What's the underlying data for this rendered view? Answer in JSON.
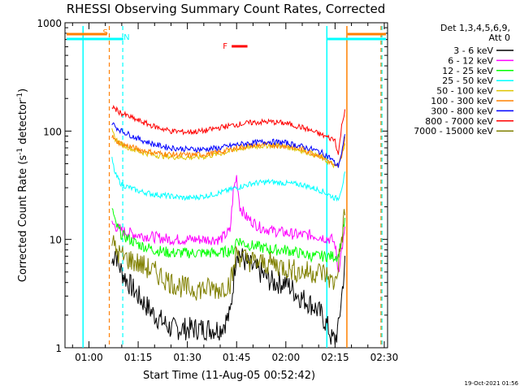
{
  "chart_data": {
    "type": "line",
    "title": "RHESSI Observing Summary Count Rates, Corrected",
    "xlabel": "Start Time (11-Aug-05 00:52:42)",
    "ylabel_main": "Corrected Count Rate (s",
    "ylabel_sup1": "-1",
    "ylabel_mid": " detector",
    "ylabel_sup2": "-1",
    "ylabel_end": ")",
    "y_scale": "log",
    "ylim": [
      1,
      1000
    ],
    "x_range_minutes": [
      "00:52:42",
      "02:31:00"
    ],
    "x_tick_labels": [
      "01:00",
      "01:15",
      "01:30",
      "01:45",
      "02:00",
      "02:15",
      "02:30"
    ],
    "x_tick_minutes": [
      60,
      75,
      90,
      105,
      120,
      135,
      150
    ],
    "y_tick_labels": [
      "1",
      "10",
      "100",
      "1000"
    ],
    "y_tick_values": [
      1,
      10,
      100,
      1000
    ],
    "legend_header": [
      "Det 1,3,4,5,6,9,",
      "Att 0"
    ],
    "legend_position": "right",
    "series": [
      {
        "name": "3 - 6 keV",
        "color": "#000000",
        "x": [
          67,
          68,
          69,
          70,
          72,
          75,
          80,
          85,
          90,
          95,
          100,
          103,
          104,
          105,
          108,
          112,
          116,
          120,
          124,
          128,
          131,
          133,
          134,
          135,
          136,
          137,
          138
        ],
        "y": [
          6,
          8,
          6,
          5,
          4,
          3,
          2,
          1.5,
          1.5,
          1.5,
          1.5,
          2,
          4,
          8,
          6,
          5,
          4,
          4,
          3,
          2.5,
          2,
          1.5,
          1.2,
          1.2,
          1.5,
          3,
          6
        ]
      },
      {
        "name": "6 - 12 keV",
        "color": "#ff00ff",
        "x": [
          67,
          70,
          75,
          80,
          85,
          90,
          95,
          100,
          103,
          104,
          105,
          106,
          108,
          112,
          116,
          120,
          124,
          128,
          131,
          134,
          135,
          136,
          137,
          138
        ],
        "y": [
          14,
          12,
          11,
          10.5,
          10,
          10,
          10,
          10,
          12,
          28,
          38,
          20,
          16,
          13,
          12,
          11.5,
          11,
          11,
          10.5,
          10,
          9,
          5,
          8,
          12
        ]
      },
      {
        "name": "12 - 25 keV",
        "color": "#00ff00",
        "x": [
          67,
          68,
          70,
          75,
          80,
          85,
          90,
          95,
          100,
          104,
          105,
          108,
          112,
          116,
          120,
          124,
          128,
          131,
          133,
          135,
          136,
          137,
          138
        ],
        "y": [
          20,
          14,
          11,
          9,
          8,
          7.5,
          7.5,
          7.5,
          7.5,
          8,
          10,
          9,
          8.5,
          8,
          8,
          7.5,
          7,
          7,
          7,
          7,
          7,
          10,
          15
        ]
      },
      {
        "name": "25 - 50 keV",
        "color": "#00ffff",
        "x": [
          67,
          68,
          70,
          75,
          80,
          85,
          90,
          95,
          100,
          105,
          110,
          115,
          120,
          125,
          128,
          131,
          133,
          134,
          135,
          136,
          137,
          138
        ],
        "y": [
          55,
          40,
          32,
          28,
          26,
          25,
          24,
          25,
          27,
          30,
          33,
          34,
          33,
          32,
          30,
          28,
          26,
          25,
          24,
          24,
          30,
          40
        ]
      },
      {
        "name": "50 - 100 keV",
        "color": "#dfc400",
        "x": [
          67,
          68,
          70,
          75,
          80,
          85,
          90,
          95,
          100,
          105,
          110,
          115,
          120,
          125,
          128,
          131,
          133,
          134,
          135,
          136,
          137,
          138
        ],
        "y": [
          100,
          85,
          75,
          65,
          60,
          58,
          57,
          58,
          62,
          68,
          72,
          74,
          72,
          66,
          62,
          56,
          52,
          50,
          47,
          48,
          58,
          80
        ]
      },
      {
        "name": "100 - 300 keV",
        "color": "#ff8000",
        "x": [
          67,
          68,
          70,
          75,
          80,
          85,
          90,
          95,
          100,
          105,
          110,
          115,
          120,
          125,
          128,
          131,
          133,
          134,
          135,
          136,
          137,
          138
        ],
        "y": [
          90,
          82,
          76,
          68,
          63,
          61,
          60,
          61,
          64,
          70,
          74,
          75,
          73,
          68,
          63,
          58,
          53,
          50,
          46,
          47,
          60,
          85
        ]
      },
      {
        "name": "300 - 800 keV",
        "color": "#0000ff",
        "x": [
          67,
          68,
          70,
          75,
          80,
          85,
          90,
          95,
          100,
          105,
          110,
          115,
          120,
          125,
          128,
          131,
          133,
          134,
          135,
          136,
          137,
          138
        ],
        "y": [
          120,
          110,
          100,
          85,
          75,
          70,
          68,
          68,
          70,
          75,
          78,
          80,
          78,
          72,
          68,
          63,
          58,
          55,
          50,
          48,
          62,
          90
        ]
      },
      {
        "name": "800 - 7000 keV",
        "color": "#ff0000",
        "x": [
          67,
          68,
          70,
          75,
          80,
          85,
          90,
          95,
          100,
          105,
          110,
          115,
          120,
          125,
          128,
          131,
          133,
          134,
          135,
          136,
          137,
          138
        ],
        "y": [
          170,
          160,
          145,
          125,
          110,
          100,
          98,
          100,
          108,
          115,
          120,
          122,
          118,
          108,
          100,
          92,
          87,
          85,
          83,
          60,
          110,
          160
        ]
      },
      {
        "name": "7000 - 15000 keV",
        "color": "#808000",
        "x": [
          67,
          68,
          70,
          75,
          80,
          85,
          90,
          95,
          100,
          103,
          104,
          105,
          106,
          108,
          112,
          116,
          120,
          124,
          128,
          131,
          133,
          134,
          135,
          136,
          137,
          138
        ],
        "y": [
          10,
          8,
          7,
          6,
          5,
          4,
          3.5,
          3.5,
          3.5,
          4,
          5,
          8,
          7,
          6.5,
          6,
          6,
          5.5,
          5,
          5,
          5,
          4.5,
          4,
          4,
          6,
          10,
          18
        ]
      }
    ],
    "annotations": [
      {
        "label": "S",
        "color": "#ff8000",
        "x": 65.5
      },
      {
        "label": "N",
        "color": "#00ffff",
        "x": 70.5
      },
      {
        "label": "F",
        "color": "#ff0000",
        "x": 103
      }
    ],
    "footer_stamp": "19-Oct-2021 01:56"
  }
}
